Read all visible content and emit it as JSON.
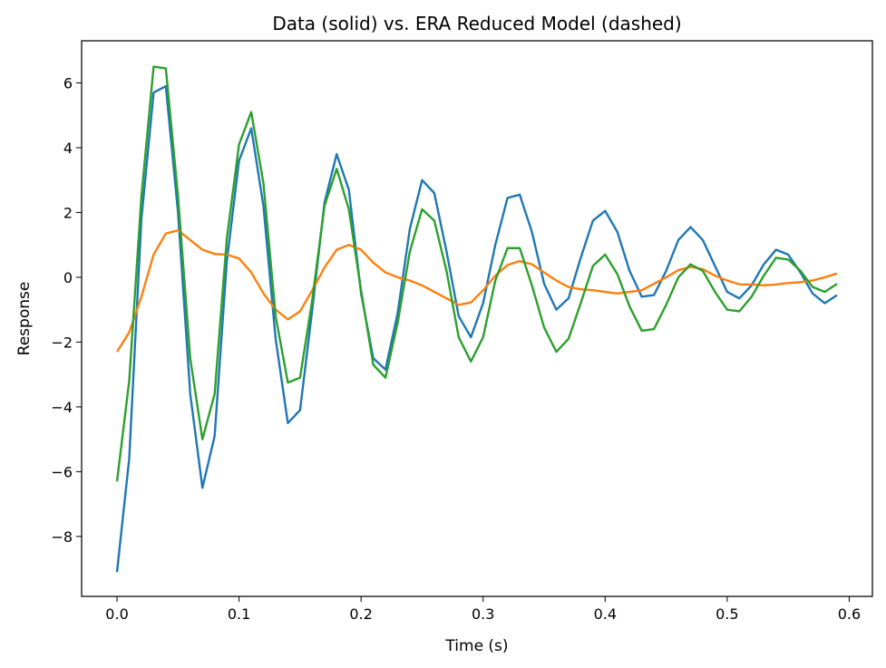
{
  "chart_data": {
    "type": "line",
    "title": "Data (solid) vs. ERA Reduced Model (dashed)",
    "xlabel": "Time (s)",
    "ylabel": "Response",
    "xlim": [
      -0.029,
      0.619
    ],
    "ylim": [
      -9.85,
      7.3
    ],
    "xticks": [
      0.0,
      0.1,
      0.2,
      0.3,
      0.4,
      0.5,
      0.6
    ],
    "xtick_labels": [
      "0.0",
      "0.1",
      "0.2",
      "0.3",
      "0.4",
      "0.5",
      "0.6"
    ],
    "yticks": [
      -8,
      -6,
      -4,
      -2,
      0,
      2,
      4,
      6
    ],
    "ytick_labels": [
      "−8",
      "−6",
      "−4",
      "−2",
      "0",
      "2",
      "4",
      "6"
    ],
    "grid": false,
    "x": [
      0.0,
      0.01,
      0.02,
      0.03,
      0.04,
      0.05,
      0.06,
      0.07,
      0.08,
      0.09,
      0.1,
      0.11,
      0.12,
      0.13,
      0.14,
      0.15,
      0.16,
      0.17,
      0.18,
      0.19,
      0.2,
      0.21,
      0.22,
      0.23,
      0.24,
      0.25,
      0.26,
      0.27,
      0.28,
      0.29,
      0.3,
      0.31,
      0.32,
      0.33,
      0.34,
      0.35,
      0.36,
      0.37,
      0.38,
      0.39,
      0.4,
      0.41,
      0.42,
      0.43,
      0.44,
      0.45,
      0.46,
      0.47,
      0.48,
      0.49,
      0.5,
      0.51,
      0.52,
      0.53,
      0.54,
      0.55,
      0.56,
      0.57,
      0.58,
      0.59
    ],
    "series": [
      {
        "color": "#1f77b4",
        "values": [
          -9.1,
          -5.6,
          1.8,
          5.7,
          5.9,
          2.0,
          -3.6,
          -6.5,
          -4.9,
          0.5,
          3.6,
          4.6,
          2.2,
          -1.9,
          -4.5,
          -4.1,
          -1.0,
          2.3,
          3.8,
          2.7,
          -0.5,
          -2.5,
          -2.85,
          -1.1,
          1.5,
          3.0,
          2.6,
          0.8,
          -1.2,
          -1.85,
          -0.8,
          1.0,
          2.45,
          2.55,
          1.4,
          -0.2,
          -1.0,
          -0.65,
          0.6,
          1.75,
          2.05,
          1.4,
          0.2,
          -0.6,
          -0.55,
          0.2,
          1.15,
          1.55,
          1.15,
          0.35,
          -0.45,
          -0.65,
          -0.25,
          0.4,
          0.85,
          0.7,
          0.15,
          -0.5,
          -0.8,
          -0.55
        ]
      },
      {
        "color": "#ff7f0e",
        "values": [
          -2.3,
          -1.7,
          -0.6,
          0.7,
          1.35,
          1.45,
          1.15,
          0.85,
          0.72,
          0.7,
          0.58,
          0.15,
          -0.5,
          -1.0,
          -1.3,
          -1.05,
          -0.4,
          0.3,
          0.85,
          1.0,
          0.85,
          0.45,
          0.15,
          0.0,
          -0.1,
          -0.25,
          -0.45,
          -0.65,
          -0.85,
          -0.78,
          -0.4,
          0.05,
          0.38,
          0.5,
          0.4,
          0.15,
          -0.1,
          -0.3,
          -0.37,
          -0.4,
          -0.45,
          -0.5,
          -0.45,
          -0.4,
          -0.2,
          0.0,
          0.22,
          0.32,
          0.25,
          0.05,
          -0.1,
          -0.22,
          -0.22,
          -0.25,
          -0.22,
          -0.18,
          -0.15,
          -0.1,
          0.0,
          0.12
        ]
      },
      {
        "color": "#2ca02c",
        "values": [
          -6.3,
          -3.2,
          2.5,
          6.5,
          6.45,
          2.5,
          -2.5,
          -5.0,
          -3.6,
          1.2,
          4.1,
          5.1,
          2.9,
          -1.2,
          -3.25,
          -3.1,
          -0.7,
          2.2,
          3.35,
          2.1,
          -0.4,
          -2.7,
          -3.1,
          -1.4,
          0.8,
          2.1,
          1.75,
          0.2,
          -1.85,
          -2.6,
          -1.85,
          -0.1,
          0.9,
          0.9,
          -0.25,
          -1.55,
          -2.3,
          -1.9,
          -0.8,
          0.35,
          0.7,
          0.1,
          -0.9,
          -1.65,
          -1.6,
          -0.85,
          0.0,
          0.4,
          0.2,
          -0.45,
          -1.0,
          -1.05,
          -0.6,
          0.05,
          0.6,
          0.55,
          0.2,
          -0.3,
          -0.45,
          -0.2
        ]
      }
    ]
  }
}
